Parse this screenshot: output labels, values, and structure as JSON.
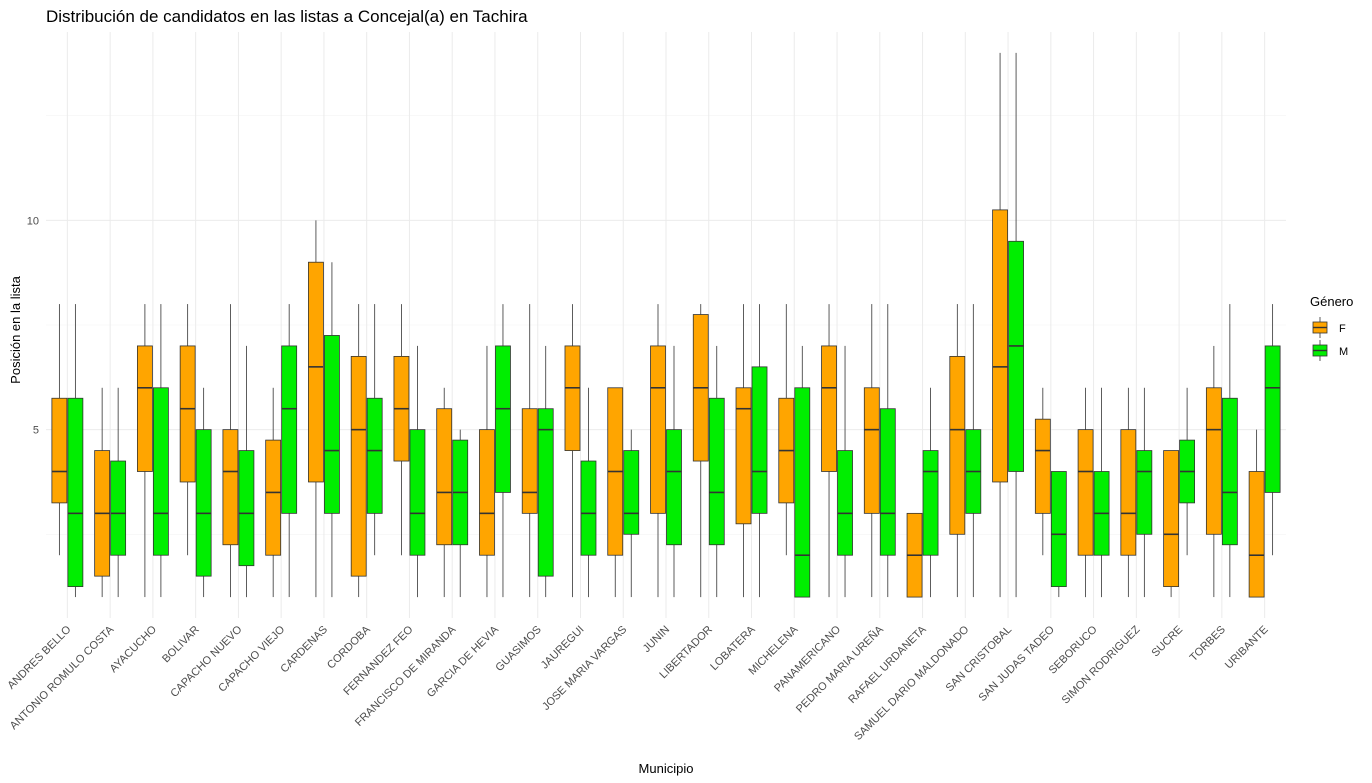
{
  "chart_data": {
    "type": "boxplot",
    "title": "Distribución de candidatos en las listas a Concejal(a) en Tachira",
    "xlabel": "Municipio",
    "ylabel": "Posición en la lista",
    "ylim": [
      0.5,
      14.5
    ],
    "yticks": [
      5,
      10
    ],
    "grid": true,
    "legend": {
      "title": "Género",
      "position": "right",
      "entries": [
        {
          "label": "F",
          "color": "#FFA500"
        },
        {
          "label": "M",
          "color": "#00EE00"
        }
      ]
    },
    "categories": [
      "ANDRES BELLO",
      "ANTONIO ROMULO COSTA",
      "AYACUCHO",
      "BOLIVAR",
      "CAPACHO NUEVO",
      "CAPACHO VIEJO",
      "CARDENAS",
      "CORDOBA",
      "FERNANDEZ FEO",
      "FRANCISCO DE MIRANDA",
      "GARCIA DE HEVIA",
      "GUASIMOS",
      "JAUREGUI",
      "JOSE MARIA VARGAS",
      "JUNIN",
      "LIBERTADOR",
      "LOBATERA",
      "MICHELENA",
      "PANAMERICANO",
      "PEDRO MARIA UREÑA",
      "RAFAEL URDANETA",
      "SAMUEL DARIO MALDONADO",
      "SAN CRISTOBAL",
      "SAN JUDAS TADEO",
      "SEBORUCO",
      "SIMON RODRIGUEZ",
      "SUCRE",
      "TORBES",
      "URIBANTE"
    ],
    "series": [
      {
        "name": "F",
        "color": "#FFA500",
        "boxes": [
          {
            "min": 2,
            "q1": 3.25,
            "median": 4,
            "q3": 5.75,
            "max": 8
          },
          {
            "min": 1,
            "q1": 1.5,
            "median": 3,
            "q3": 4.5,
            "max": 6
          },
          {
            "min": 1,
            "q1": 4,
            "median": 6,
            "q3": 7,
            "max": 8
          },
          {
            "min": 2,
            "q1": 3.75,
            "median": 5.5,
            "q3": 7,
            "max": 8
          },
          {
            "min": 1,
            "q1": 2.25,
            "median": 4,
            "q3": 5,
            "max": 8
          },
          {
            "min": 1,
            "q1": 2,
            "median": 3.5,
            "q3": 4.75,
            "max": 6
          },
          {
            "min": 1,
            "q1": 3.75,
            "median": 6.5,
            "q3": 9,
            "max": 10
          },
          {
            "min": 1,
            "q1": 1.5,
            "median": 5,
            "q3": 6.75,
            "max": 8
          },
          {
            "min": 2,
            "q1": 4.25,
            "median": 5.5,
            "q3": 6.75,
            "max": 8
          },
          {
            "min": 1,
            "q1": 2.25,
            "median": 3.5,
            "q3": 5.5,
            "max": 6
          },
          {
            "min": 1,
            "q1": 2,
            "median": 3,
            "q3": 5,
            "max": 7
          },
          {
            "min": 1,
            "q1": 3,
            "median": 3.5,
            "q3": 5.5,
            "max": 8
          },
          {
            "min": 1,
            "q1": 4.5,
            "median": 6,
            "q3": 7,
            "max": 8
          },
          {
            "min": 1,
            "q1": 2,
            "median": 4,
            "q3": 6,
            "max": 6
          },
          {
            "min": 1,
            "q1": 3,
            "median": 6,
            "q3": 7,
            "max": 8
          },
          {
            "min": 1,
            "q1": 4.25,
            "median": 6,
            "q3": 7.75,
            "max": 8
          },
          {
            "min": 1,
            "q1": 2.75,
            "median": 5.5,
            "q3": 6,
            "max": 8
          },
          {
            "min": 2,
            "q1": 3.25,
            "median": 4.5,
            "q3": 5.75,
            "max": 8
          },
          {
            "min": 1,
            "q1": 4,
            "median": 6,
            "q3": 7,
            "max": 8
          },
          {
            "min": 1,
            "q1": 3,
            "median": 5,
            "q3": 6,
            "max": 8
          },
          {
            "min": 1,
            "q1": 1,
            "median": 2,
            "q3": 3,
            "max": 3
          },
          {
            "min": 1,
            "q1": 2.5,
            "median": 5,
            "q3": 6.75,
            "max": 8
          },
          {
            "min": 1,
            "q1": 3.75,
            "median": 6.5,
            "q3": 10.25,
            "max": 14
          },
          {
            "min": 2,
            "q1": 3,
            "median": 4.5,
            "q3": 5.25,
            "max": 6
          },
          {
            "min": 1,
            "q1": 2,
            "median": 4,
            "q3": 5,
            "max": 6
          },
          {
            "min": 1,
            "q1": 2,
            "median": 3,
            "q3": 5,
            "max": 6
          },
          {
            "min": 1,
            "q1": 1.25,
            "median": 2.5,
            "q3": 4.5,
            "max": 4.5
          },
          {
            "min": 1,
            "q1": 2.5,
            "median": 5,
            "q3": 6,
            "max": 7
          },
          {
            "min": 1,
            "q1": 1,
            "median": 2,
            "q3": 4,
            "max": 5
          }
        ]
      },
      {
        "name": "M",
        "color": "#00EE00",
        "boxes": [
          {
            "min": 1,
            "q1": 1.25,
            "median": 3,
            "q3": 5.75,
            "max": 8
          },
          {
            "min": 1,
            "q1": 2,
            "median": 3,
            "q3": 4.25,
            "max": 6
          },
          {
            "min": 1,
            "q1": 2,
            "median": 3,
            "q3": 6,
            "max": 8
          },
          {
            "min": 1,
            "q1": 1.5,
            "median": 3,
            "q3": 5,
            "max": 6
          },
          {
            "min": 1,
            "q1": 1.75,
            "median": 3,
            "q3": 4.5,
            "max": 7
          },
          {
            "min": 1,
            "q1": 3,
            "median": 5.5,
            "q3": 7,
            "max": 8
          },
          {
            "min": 1,
            "q1": 3,
            "median": 4.5,
            "q3": 7.25,
            "max": 9
          },
          {
            "min": 2,
            "q1": 3,
            "median": 4.5,
            "q3": 5.75,
            "max": 8
          },
          {
            "min": 1,
            "q1": 2,
            "median": 3,
            "q3": 5,
            "max": 7
          },
          {
            "min": 1,
            "q1": 2.25,
            "median": 3.5,
            "q3": 4.75,
            "max": 5
          },
          {
            "min": 1,
            "q1": 3.5,
            "median": 5.5,
            "q3": 7,
            "max": 8
          },
          {
            "min": 1,
            "q1": 1.5,
            "median": 5,
            "q3": 5.5,
            "max": 7
          },
          {
            "min": 1,
            "q1": 2,
            "median": 3,
            "q3": 4.25,
            "max": 6
          },
          {
            "min": 1,
            "q1": 2.5,
            "median": 3,
            "q3": 4.5,
            "max": 5
          },
          {
            "min": 1,
            "q1": 2.25,
            "median": 4,
            "q3": 5,
            "max": 7
          },
          {
            "min": 1,
            "q1": 2.25,
            "median": 3.5,
            "q3": 5.75,
            "max": 7
          },
          {
            "min": 1,
            "q1": 3,
            "median": 4,
            "q3": 6.5,
            "max": 8
          },
          {
            "min": 1,
            "q1": 1,
            "median": 2,
            "q3": 6,
            "max": 7
          },
          {
            "min": 1,
            "q1": 2,
            "median": 3,
            "q3": 4.5,
            "max": 7
          },
          {
            "min": 1,
            "q1": 2,
            "median": 3,
            "q3": 5.5,
            "max": 8
          },
          {
            "min": 1,
            "q1": 2,
            "median": 4,
            "q3": 4.5,
            "max": 6
          },
          {
            "min": 1,
            "q1": 3,
            "median": 4,
            "q3": 5,
            "max": 8
          },
          {
            "min": 1,
            "q1": 4,
            "median": 7,
            "q3": 9.5,
            "max": 14
          },
          {
            "min": 1,
            "q1": 1.25,
            "median": 2.5,
            "q3": 4,
            "max": 4
          },
          {
            "min": 1,
            "q1": 2,
            "median": 3,
            "q3": 4,
            "max": 6
          },
          {
            "min": 1,
            "q1": 2.5,
            "median": 4,
            "q3": 4.5,
            "max": 6
          },
          {
            "min": 2,
            "q1": 3.25,
            "median": 4,
            "q3": 4.75,
            "max": 6
          },
          {
            "min": 1,
            "q1": 2.25,
            "median": 3.5,
            "q3": 5.75,
            "max": 8
          },
          {
            "min": 2,
            "q1": 3.5,
            "median": 6,
            "q3": 7,
            "max": 8
          }
        ]
      }
    ]
  }
}
